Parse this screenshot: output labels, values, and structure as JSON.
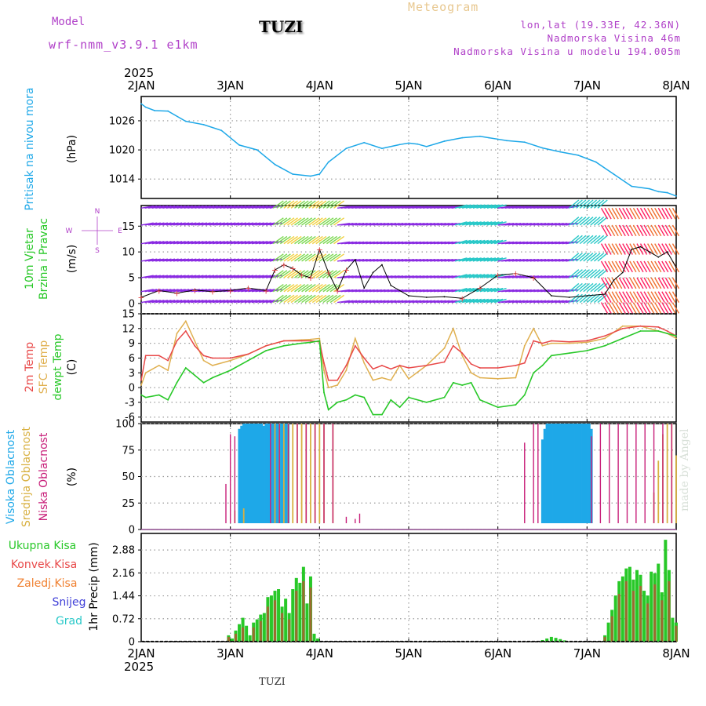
{
  "header": {
    "model_label": "Model",
    "model_name": "wrf-nmm_v3.9.1 e1km",
    "station": "TUZI",
    "product": "Meteogram",
    "lonlat": "lon,lat (19.33E, 42.36N)",
    "elevation": "Nadmorska Visina 46m",
    "model_elevation": "Nadmorska Visina u modelu 194.005m"
  },
  "footer": {
    "station": "TUZI"
  },
  "watermark": "made by Angel",
  "time_axis": {
    "year_label": "2025",
    "ticks": [
      "2JAN",
      "3JAN",
      "4JAN",
      "5JAN",
      "6JAN",
      "7JAN",
      "8JAN"
    ]
  },
  "colors": {
    "pressure": "#1ea8e8",
    "wind_label": "#28c828",
    "wind_black": "#000000",
    "temp_2m": "#e84848",
    "temp_sfc": "#e0b050",
    "dewpt": "#28c828",
    "cloud_high": "#1ea8e8",
    "cloud_mid": "#d8b040",
    "cloud_low": "#c8207a",
    "precip_total": "#28c828",
    "precip_conv": "#e84848",
    "precip_freezing": "#f08030",
    "precip_snow": "#4040d8",
    "precip_hail": "#28c8c8",
    "compass": "#b040c8",
    "frame": "#000000"
  },
  "chart_data": [
    {
      "type": "line",
      "panel": "pressure",
      "ylabel_rotated": "Pritisak na nivou mora",
      "unit": "(hPa)",
      "yticks": [
        1014,
        1020,
        1026
      ],
      "ylim": [
        1010,
        1031
      ],
      "x_days": [
        0.0,
        0.05,
        0.15,
        0.3,
        0.5,
        0.7,
        0.9,
        1.1,
        1.3,
        1.5,
        1.7,
        1.9,
        2.0,
        2.1,
        2.3,
        2.5,
        2.7,
        2.9,
        3.0,
        3.1,
        3.2,
        3.4,
        3.6,
        3.8,
        3.9,
        4.1,
        4.3,
        4.5,
        4.7,
        4.9,
        5.1,
        5.3,
        5.5,
        5.7,
        5.8,
        5.9,
        6.0
      ],
      "series": [
        {
          "name": "",
          "values": [
            1029.5,
            1028.8,
            1028.1,
            1028.0,
            1025.9,
            1025.2,
            1024.0,
            1021.0,
            1020.0,
            1017.0,
            1015.0,
            1014.6,
            1015.0,
            1017.5,
            1020.3,
            1021.5,
            1020.3,
            1021.1,
            1021.4,
            1021.2,
            1020.7,
            1021.8,
            1022.5,
            1022.8,
            1022.5,
            1021.9,
            1021.6,
            1020.4,
            1019.6,
            1018.9,
            1017.5,
            1015.0,
            1012.5,
            1012.0,
            1011.4,
            1011.2,
            1010.5
          ]
        }
      ]
    },
    {
      "type": "line",
      "panel": "wind",
      "ylabel_rotated": [
        "10m Vjetar",
        "Brzina i Pravac"
      ],
      "unit": "(m/s)",
      "compass": {
        "n": "N",
        "s": "S",
        "e": "E",
        "w": "W"
      },
      "yticks": [
        0,
        5,
        10,
        15
      ],
      "ylim": [
        -2,
        19
      ],
      "x_days": [
        0.0,
        0.2,
        0.4,
        0.6,
        0.8,
        1.0,
        1.2,
        1.4,
        1.5,
        1.6,
        1.7,
        1.8,
        1.9,
        2.0,
        2.1,
        2.2,
        2.3,
        2.4,
        2.5,
        2.6,
        2.7,
        2.8,
        3.0,
        3.2,
        3.4,
        3.6,
        3.8,
        4.0,
        4.2,
        4.4,
        4.6,
        4.8,
        5.0,
        5.2,
        5.3,
        5.4,
        5.5,
        5.6,
        5.7,
        5.8,
        5.9,
        6.0
      ],
      "series": [
        {
          "name": "",
          "values": [
            1.2,
            2.5,
            2.0,
            2.6,
            2.3,
            2.5,
            3.0,
            2.5,
            6.5,
            7.5,
            6.8,
            5.5,
            5.0,
            10.5,
            6.0,
            2.5,
            6.5,
            8.5,
            3.0,
            6.0,
            7.5,
            3.5,
            1.5,
            1.2,
            1.3,
            1.0,
            3.0,
            5.5,
            5.8,
            5.0,
            1.5,
            1.2,
            1.5,
            1.8,
            4.5,
            6.0,
            10.5,
            11.0,
            10.0,
            9.0,
            10.0,
            7.0
          ]
        }
      ]
    },
    {
      "type": "line",
      "panel": "temperature",
      "ylabel_rotated": [
        "2m Temp",
        "SFC Temp",
        "dewpt Temp"
      ],
      "unit": "(C)",
      "yticks": [
        -6,
        -3,
        0,
        3,
        6,
        9,
        12,
        15
      ],
      "ylim": [
        -7,
        15
      ],
      "x_days": [
        0.0,
        0.05,
        0.2,
        0.3,
        0.4,
        0.5,
        0.6,
        0.7,
        0.8,
        1.0,
        1.2,
        1.4,
        1.6,
        1.8,
        1.9,
        2.0,
        2.05,
        2.1,
        2.2,
        2.3,
        2.4,
        2.5,
        2.6,
        2.7,
        2.8,
        2.9,
        3.0,
        3.2,
        3.4,
        3.5,
        3.6,
        3.7,
        3.8,
        4.0,
        4.2,
        4.3,
        4.4,
        4.5,
        4.6,
        4.8,
        5.0,
        5.2,
        5.4,
        5.6,
        5.8,
        5.9,
        6.0
      ],
      "series": [
        {
          "name": "",
          "values": [
            1.5,
            6.5,
            6.5,
            5.5,
            9.5,
            11.5,
            8.5,
            6.5,
            6.0,
            6.0,
            6.8,
            8.5,
            9.5,
            9.5,
            9.5,
            9.3,
            5.0,
            1.5,
            1.5,
            4.5,
            8.5,
            6.0,
            3.8,
            4.5,
            3.8,
            4.5,
            4.0,
            4.5,
            5.2,
            8.5,
            7.0,
            4.8,
            4.0,
            4.0,
            4.5,
            5.0,
            9.5,
            9.0,
            9.5,
            9.3,
            9.5,
            10.5,
            12.0,
            12.5,
            12.3,
            11.5,
            10.5
          ]
        },
        {
          "name": "",
          "values": [
            0.5,
            3.0,
            4.5,
            3.5,
            11.0,
            13.5,
            9.5,
            5.5,
            4.5,
            5.5,
            6.8,
            8.5,
            9.5,
            9.7,
            9.8,
            10.0,
            3.5,
            0.0,
            0.5,
            3.5,
            10.0,
            5.0,
            1.5,
            2.0,
            1.5,
            4.5,
            1.8,
            4.5,
            8.0,
            12.0,
            6.5,
            3.0,
            2.0,
            1.8,
            2.0,
            8.5,
            12.0,
            8.5,
            9.0,
            9.0,
            9.2,
            10.0,
            12.5,
            12.5,
            11.5,
            11.0,
            10.0
          ]
        },
        {
          "name": "",
          "values": [
            -1.5,
            -2.0,
            -1.5,
            -2.5,
            1.0,
            4.0,
            2.5,
            1.0,
            2.0,
            3.5,
            5.5,
            7.5,
            8.5,
            9.0,
            9.2,
            9.5,
            -1.0,
            -4.5,
            -3.0,
            -2.5,
            -1.5,
            -2.0,
            -5.5,
            -5.5,
            -2.5,
            -4.0,
            -2.0,
            -3.0,
            -2.0,
            1.0,
            0.5,
            1.0,
            -2.5,
            -4.0,
            -3.5,
            -1.5,
            3.0,
            4.5,
            6.5,
            7.0,
            7.5,
            8.5,
            10.0,
            11.5,
            11.5,
            11.0,
            10.5
          ]
        }
      ]
    },
    {
      "type": "bar",
      "panel": "cloud",
      "ylabel_rotated": [
        "Visoka Oblacnost",
        "Srednja Oblacnost",
        "Niska Oblacnost"
      ],
      "unit": "(%)",
      "yticks": [
        0,
        25,
        50,
        75,
        100
      ],
      "ylim": [
        0,
        100
      ],
      "series": [
        {
          "name": "Visoka Oblacnost",
          "x_days": [
            1.1,
            1.125,
            1.15,
            1.175,
            1.2,
            1.225,
            1.25,
            1.275,
            1.3,
            1.325,
            1.35,
            1.375,
            1.4,
            1.425,
            1.45,
            1.475,
            1.5,
            1.525,
            1.55,
            1.575,
            1.6,
            1.625,
            1.65,
            4.5,
            4.525,
            4.55,
            4.575,
            4.6,
            4.625,
            4.65,
            4.675,
            4.7,
            4.725,
            4.75,
            4.775,
            4.8,
            4.825,
            4.85,
            4.875,
            4.9,
            4.925,
            4.95,
            4.975,
            5.0,
            5.025,
            5.05
          ],
          "values": [
            95,
            98,
            100,
            100,
            100,
            100,
            100,
            100,
            100,
            100,
            100,
            98,
            100,
            100,
            100,
            100,
            100,
            100,
            100,
            100,
            100,
            100,
            100,
            85,
            95,
            100,
            100,
            100,
            100,
            100,
            100,
            100,
            100,
            100,
            100,
            100,
            100,
            100,
            100,
            100,
            100,
            100,
            100,
            100,
            100,
            95
          ]
        },
        {
          "name": "Srednja Oblacnost",
          "x_days": [
            1.05,
            1.15,
            1.5,
            1.55,
            1.6,
            1.65,
            1.7,
            1.75,
            1.8,
            1.85,
            1.9,
            1.95,
            2.0,
            2.05,
            2.15,
            5.75,
            5.8,
            5.85,
            5.9,
            5.95,
            6.0
          ],
          "values": [
            18,
            20,
            100,
            100,
            100,
            100,
            100,
            100,
            100,
            100,
            100,
            100,
            100,
            100,
            100,
            35,
            65,
            90,
            100,
            100,
            70
          ]
        },
        {
          "name": "Niska Oblacnost",
          "x_days": [
            0.95,
            1.0,
            1.05,
            1.45,
            1.55,
            1.65,
            1.75,
            1.85,
            1.95,
            2.05,
            2.15,
            2.3,
            2.4,
            2.45,
            4.3,
            4.4,
            4.45,
            5.05,
            5.15,
            5.25,
            5.35,
            5.45,
            5.55,
            5.65,
            5.75,
            5.85,
            5.95
          ],
          "values": [
            43,
            90,
            88,
            100,
            100,
            100,
            100,
            100,
            100,
            100,
            100,
            12,
            10,
            15,
            82,
            100,
            100,
            88,
            100,
            100,
            100,
            100,
            100,
            100,
            100,
            100,
            100
          ]
        }
      ]
    },
    {
      "type": "bar",
      "panel": "precip",
      "legend_labels": [
        "Ukupna Kisa",
        "Konvek.Kisa",
        "Zaledj.Kisa",
        "Snijeg",
        "Grad"
      ],
      "unit": "1hr Precip (mm)",
      "yticks": [
        0,
        0.72,
        1.44,
        2.16,
        2.88
      ],
      "ylim": [
        0,
        3.4
      ],
      "series": [
        {
          "name": "Ukupna Kisa",
          "x_days": [
            0.98,
            1.02,
            1.06,
            1.1,
            1.14,
            1.18,
            1.22,
            1.26,
            1.3,
            1.34,
            1.38,
            1.42,
            1.46,
            1.5,
            1.54,
            1.58,
            1.62,
            1.66,
            1.7,
            1.74,
            1.78,
            1.82,
            1.86,
            1.9,
            1.94,
            1.98,
            4.5,
            4.55,
            4.6,
            4.65,
            4.7,
            4.75,
            5.2,
            5.24,
            5.28,
            5.32,
            5.36,
            5.4,
            5.44,
            5.48,
            5.52,
            5.56,
            5.6,
            5.64,
            5.68,
            5.72,
            5.76,
            5.8,
            5.84,
            5.88,
            5.92,
            5.96,
            6.0
          ],
          "values": [
            0.2,
            0.1,
            0.35,
            0.55,
            0.75,
            0.5,
            0.2,
            0.6,
            0.7,
            0.85,
            0.9,
            1.4,
            1.45,
            1.6,
            1.65,
            1.1,
            1.35,
            0.9,
            1.65,
            2.0,
            1.85,
            2.35,
            1.2,
            2.05,
            0.25,
            0.1,
            0.05,
            0.1,
            0.15,
            0.12,
            0.08,
            0.04,
            0.2,
            0.6,
            1.0,
            1.45,
            1.9,
            2.05,
            2.3,
            2.35,
            1.95,
            2.25,
            2.1,
            1.6,
            1.45,
            2.2,
            2.15,
            2.45,
            1.55,
            3.2,
            2.25,
            0.75,
            0.6
          ]
        },
        {
          "name": "Konvek.Kisa",
          "x_days": [
            0.98,
            1.06,
            1.14,
            1.26,
            1.34,
            1.42,
            1.5,
            1.58,
            1.66,
            1.74,
            1.82,
            1.9,
            5.2,
            5.28,
            5.36,
            5.44,
            5.52,
            5.6,
            5.68,
            5.76,
            5.84,
            5.92,
            6.0
          ],
          "values": [
            0.15,
            0.25,
            0.45,
            0.45,
            0.65,
            1.1,
            1.3,
            0.9,
            0.7,
            1.6,
            1.9,
            1.7,
            0.15,
            0.8,
            1.5,
            1.9,
            1.6,
            1.75,
            1.2,
            1.8,
            1.3,
            1.9,
            0.5
          ]
        }
      ]
    }
  ]
}
